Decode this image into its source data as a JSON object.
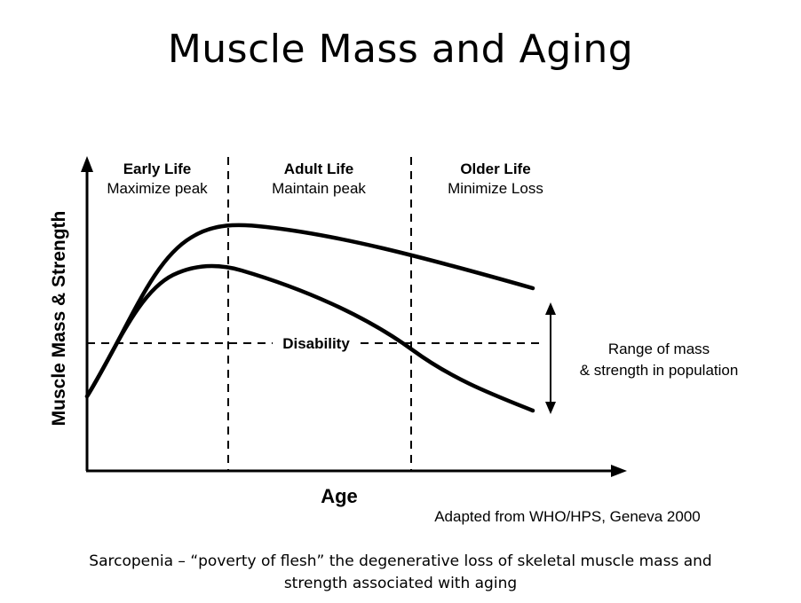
{
  "title": "Muscle Mass and Aging",
  "diagram": {
    "y_axis_label": "Muscle Mass & Strength",
    "x_axis_label": "Age",
    "phases": [
      {
        "heading": "Early Life",
        "subheading": "Maximize peak"
      },
      {
        "heading": "Adult Life",
        "subheading": "Maintain peak"
      },
      {
        "heading": "Older Life",
        "subheading": "Minimize Loss"
      }
    ],
    "threshold_label": "Disability",
    "range_label": [
      "Range of mass",
      "& strength in population"
    ],
    "source": "Adapted from WHO/HPS, Geneva 2000"
  },
  "caption": [
    "Sarcopenia – “poverty of flesh” the degenerative loss of skeletal muscle mass and",
    "strength associated with aging"
  ],
  "colors": {
    "ink": "#000000",
    "background": "#ffffff"
  }
}
